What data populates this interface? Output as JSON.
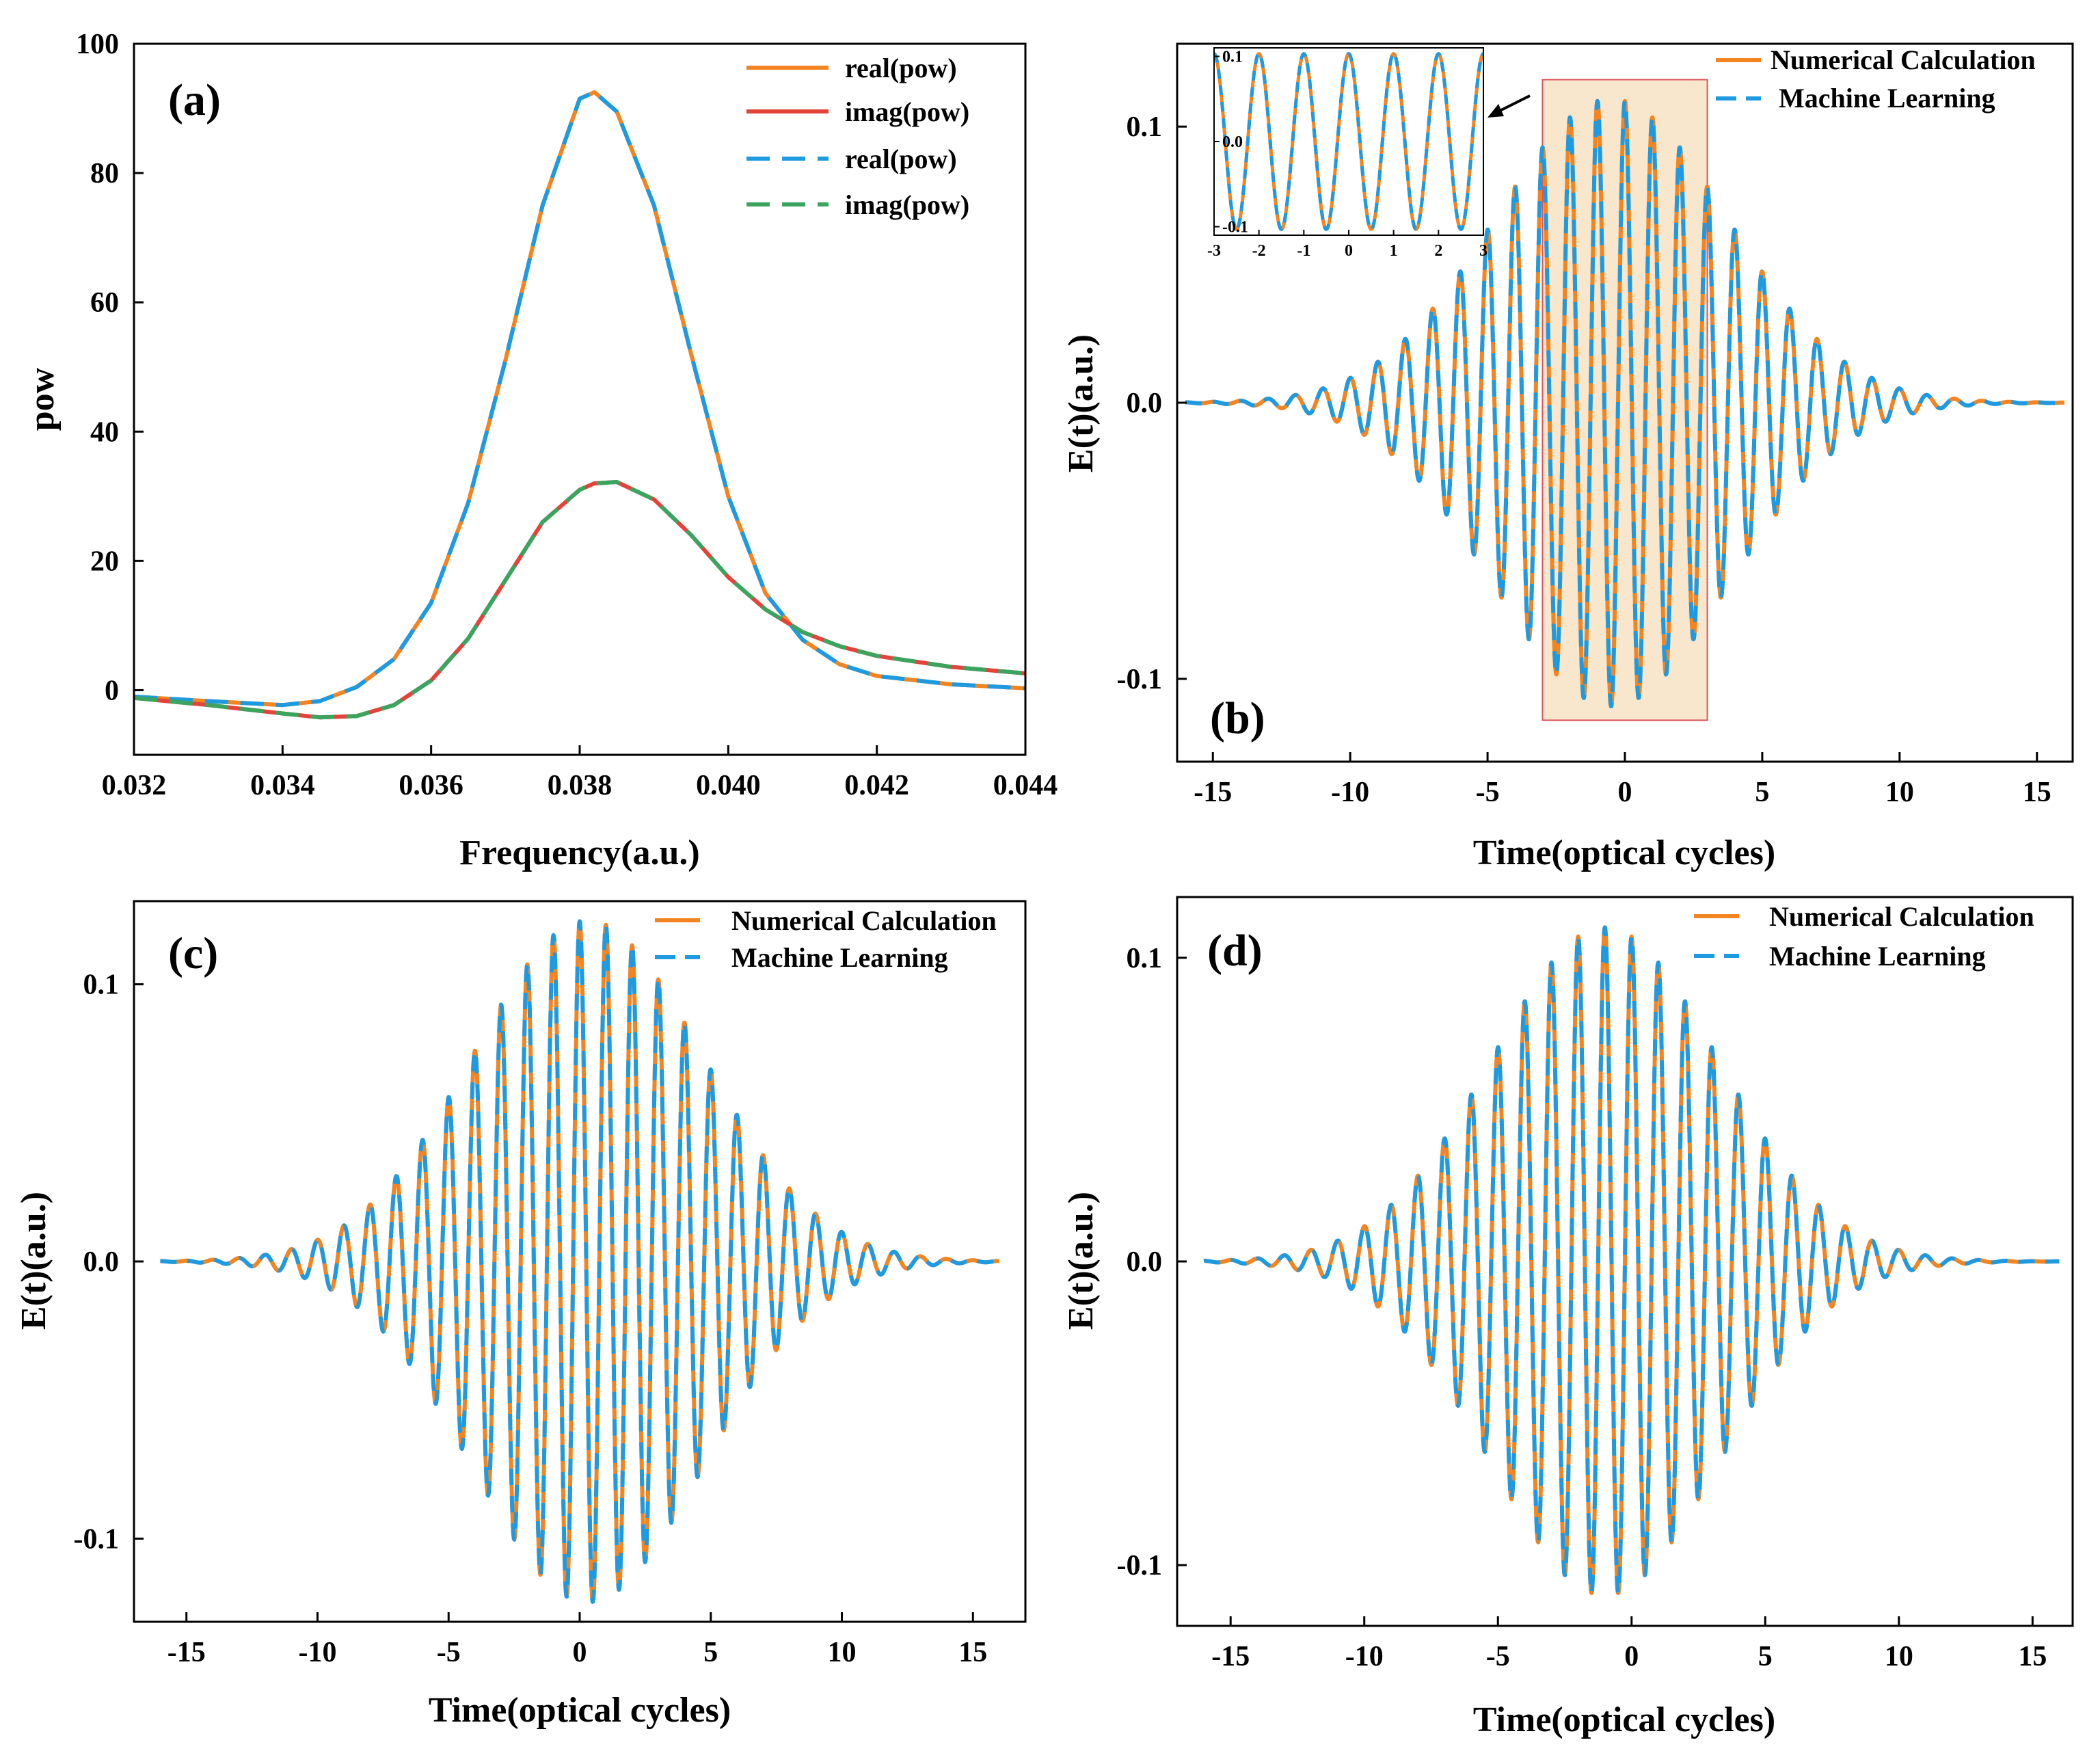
{
  "chart_data": [
    {
      "panel": "(a)",
      "type": "line",
      "xlabel": "Frequency(a.u.)",
      "ylabel": "pow",
      "xlim": [
        0.032,
        0.044
      ],
      "ylim": [
        -10,
        100
      ],
      "xticks": [
        0.032,
        0.034,
        0.036,
        0.038,
        0.04,
        0.042,
        0.044
      ],
      "xtick_labels": [
        "0.032",
        "0.034",
        "0.036",
        "0.038",
        "0.040",
        "0.042",
        "0.044"
      ],
      "yticks": [
        0,
        20,
        40,
        60,
        80,
        100
      ],
      "ytick_labels": [
        "0",
        "20",
        "40",
        "60",
        "80",
        "100"
      ],
      "legend_position": "top-right",
      "x": [
        0.032,
        0.033,
        0.034,
        0.0345,
        0.035,
        0.0355,
        0.036,
        0.0365,
        0.037,
        0.0375,
        0.038,
        0.0382,
        0.0385,
        0.039,
        0.0395,
        0.04,
        0.0405,
        0.041,
        0.0415,
        0.042,
        0.043,
        0.044
      ],
      "series": [
        {
          "name": "real(pow)",
          "style": "solid",
          "color": "#F28522",
          "values": [
            -1.0,
            -1.7,
            -2.3,
            -1.7,
            0.5,
            4.8,
            13.5,
            29.0,
            51.0,
            75.0,
            91.5,
            92.5,
            89.5,
            75.0,
            52.0,
            30.0,
            15.0,
            7.8,
            4.0,
            2.2,
            0.9,
            0.3
          ]
        },
        {
          "name": "imag(pow)",
          "style": "solid",
          "color": "#E2443A",
          "values": [
            -1.2,
            -2.3,
            -3.6,
            -4.2,
            -4.0,
            -2.3,
            1.5,
            8.0,
            17.0,
            26.0,
            31.0,
            32.0,
            32.2,
            29.5,
            24.0,
            17.5,
            12.5,
            9.0,
            6.8,
            5.3,
            3.6,
            2.6
          ]
        },
        {
          "name": "real(pow)",
          "style": "dashed",
          "color": "#1E9BE0",
          "values": [
            -1.0,
            -1.7,
            -2.3,
            -1.7,
            0.5,
            4.8,
            13.5,
            29.0,
            51.0,
            75.0,
            91.5,
            92.5,
            89.5,
            75.0,
            52.0,
            30.0,
            15.0,
            7.8,
            4.0,
            2.2,
            0.9,
            0.3
          ]
        },
        {
          "name": "imag(pow)",
          "style": "dashed",
          "color": "#3BA45F",
          "values": [
            -1.2,
            -2.3,
            -3.6,
            -4.2,
            -4.0,
            -2.3,
            1.5,
            8.0,
            17.0,
            26.0,
            31.0,
            32.0,
            32.2,
            29.5,
            24.0,
            17.5,
            12.5,
            9.0,
            6.8,
            5.3,
            3.6,
            2.6
          ]
        }
      ]
    },
    {
      "panel": "(b)",
      "type": "line",
      "xlabel": "Time(optical cycles)",
      "ylabel": "E(t)(a.u.)",
      "xlim": [
        -16.3,
        16.3
      ],
      "ylim": [
        -0.13,
        0.13
      ],
      "xticks": [
        -15,
        -10,
        -5,
        0,
        5,
        10,
        15
      ],
      "xtick_labels": [
        "-15",
        "-10",
        "-5",
        "0",
        "5",
        "10",
        "15"
      ],
      "yticks": [
        -0.1,
        0.0,
        0.1
      ],
      "ytick_labels": [
        "-0.1",
        "0.0",
        "0.1"
      ],
      "legend_position": "top-right",
      "signal": {
        "amplitude": 0.11,
        "center": -0.5,
        "width": 6.0,
        "t_min": -16,
        "t_max": 16
      },
      "highlight": {
        "x": [
          -3,
          3
        ],
        "color": "#F8E7CC",
        "border": "#E0505A"
      },
      "inset": {
        "xlim": [
          -3,
          3
        ],
        "ylim": [
          -0.11,
          0.11
        ],
        "xtick_labels": [
          "-3",
          "-2",
          "-1",
          "0",
          "1",
          "2",
          "3"
        ],
        "ytick_labels": [
          "-0.1",
          "0.0",
          "0.1"
        ]
      },
      "series": [
        {
          "name": "Numerical Calculation",
          "style": "solid",
          "color": "#F28522"
        },
        {
          "name": "Machine Learning",
          "style": "dashed",
          "color": "#1E9BE0"
        }
      ]
    },
    {
      "panel": "(c)",
      "type": "line",
      "xlabel": "Time(optical cycles)",
      "ylabel": "E(t)(a.u.)",
      "xlim": [
        -17,
        17
      ],
      "ylim": [
        -0.13,
        0.13
      ],
      "xticks": [
        -15,
        -10,
        -5,
        0,
        5,
        10,
        15
      ],
      "xtick_labels": [
        "-15",
        "-10",
        "-5",
        "0",
        "5",
        "10",
        "15"
      ],
      "yticks": [
        -0.1,
        0.0,
        0.1
      ],
      "ytick_labels": [
        "-0.1",
        "0.0",
        "0.1"
      ],
      "legend_position": "top-right",
      "signal": {
        "amplitude": 0.123,
        "center": 0.3,
        "width": 6.2,
        "t_min": -16,
        "t_max": 16
      },
      "series": [
        {
          "name": "Numerical Calculation",
          "style": "solid",
          "color": "#F28522"
        },
        {
          "name": "Machine Learning",
          "style": "dashed",
          "color": "#1E9BE0"
        }
      ]
    },
    {
      "panel": "(d)",
      "type": "line",
      "xlabel": "Time(optical cycles)",
      "ylabel": "E(t)(a.u.)",
      "xlim": [
        -17,
        16.5
      ],
      "ylim": [
        -0.12,
        0.12
      ],
      "xticks": [
        -15,
        -10,
        -5,
        0,
        5,
        10,
        15
      ],
      "xtick_labels": [
        "-15",
        "-10",
        "-5",
        "0",
        "5",
        "10",
        "15"
      ],
      "yticks": [
        -0.1,
        0.0,
        0.1
      ],
      "ytick_labels": [
        "-0.1",
        "0.0",
        "0.1"
      ],
      "legend_position": "top-right",
      "signal": {
        "amplitude": 0.11,
        "center": -1.0,
        "width": 6.0,
        "t_min": -16,
        "t_max": 16
      },
      "series": [
        {
          "name": "Numerical Calculation",
          "style": "solid",
          "color": "#F28522"
        },
        {
          "name": "Machine Learning",
          "style": "dashed",
          "color": "#1E9BE0"
        }
      ]
    }
  ]
}
